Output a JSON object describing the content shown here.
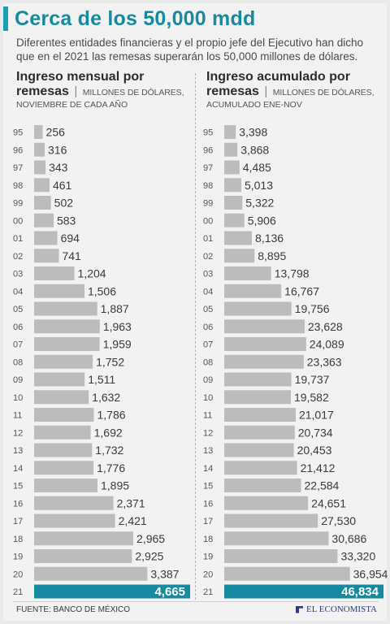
{
  "title": "Cerca de los 50,000 mdd",
  "subtitle": "Diferentes entidades financieras y el propio jefe del Ejecutivo han dicho que en el 2021 las remesas superarán los 50,000 millones de dólares.",
  "colors": {
    "accent": "#1a9eb4",
    "bar": "#bcbcbc",
    "highlight": "#168aa0"
  },
  "chart_data": [
    {
      "type": "bar",
      "orientation": "horizontal",
      "title": "Ingreso mensual por",
      "title_bold_2": "remesas",
      "units": "MILLONES DE DÓLARES,",
      "note": "NOVIEMBRE DE CADA AÑO",
      "categories": [
        "95",
        "96",
        "97",
        "98",
        "99",
        "00",
        "01",
        "02",
        "03",
        "04",
        "05",
        "06",
        "07",
        "08",
        "09",
        "10",
        "11",
        "12",
        "13",
        "14",
        "15",
        "16",
        "17",
        "18",
        "19",
        "20",
        "21"
      ],
      "values": [
        256,
        316,
        343,
        461,
        502,
        583,
        694,
        741,
        1204,
        1506,
        1887,
        1963,
        1959,
        1752,
        1511,
        1632,
        1786,
        1692,
        1732,
        1776,
        1895,
        2371,
        2421,
        2965,
        2925,
        3387,
        4665
      ],
      "labels": [
        "256",
        "316",
        "343",
        "461",
        "502",
        "583",
        "694",
        "741",
        "1,204",
        "1,506",
        "1,887",
        "1,963",
        "1,959",
        "1,752",
        "1,511",
        "1,632",
        "1,786",
        "1,692",
        "1,732",
        "1,776",
        "1,895",
        "2,371",
        "2,421",
        "2,965",
        "2,925",
        "3,387",
        "4,665"
      ],
      "xlim": [
        0,
        4665
      ]
    },
    {
      "type": "bar",
      "orientation": "horizontal",
      "title": "Ingreso acumulado por",
      "title_bold_2": "remesas",
      "units": "MILLONES DE DÓLARES,",
      "note": "ACUMULADO ENE-NOV",
      "categories": [
        "95",
        "96",
        "97",
        "98",
        "99",
        "00",
        "01",
        "02",
        "03",
        "04",
        "05",
        "06",
        "07",
        "08",
        "09",
        "10",
        "11",
        "12",
        "13",
        "14",
        "15",
        "16",
        "17",
        "18",
        "19",
        "20",
        "21"
      ],
      "values": [
        3398,
        3868,
        4485,
        5013,
        5322,
        5906,
        8136,
        8895,
        13798,
        16767,
        19756,
        23628,
        24089,
        23363,
        19737,
        19582,
        21017,
        20734,
        20453,
        21412,
        22584,
        24651,
        27530,
        30686,
        33320,
        36954,
        46834
      ],
      "labels": [
        "3,398",
        "3,868",
        "4,485",
        "5,013",
        "5,322",
        "5,906",
        "8,136",
        "8,895",
        "13,798",
        "16,767",
        "19,756",
        "23,628",
        "24,089",
        "23,363",
        "19,737",
        "19,582",
        "21,017",
        "20,734",
        "20,453",
        "21,412",
        "22,584",
        "24,651",
        "27,530",
        "30,686",
        "33,320",
        "36,954",
        "46,834"
      ],
      "xlim": [
        0,
        46834
      ]
    }
  ],
  "footer": {
    "source": "FUENTE: BANCO DE MÉXICO",
    "logo": "EL ECONOMISTA"
  }
}
